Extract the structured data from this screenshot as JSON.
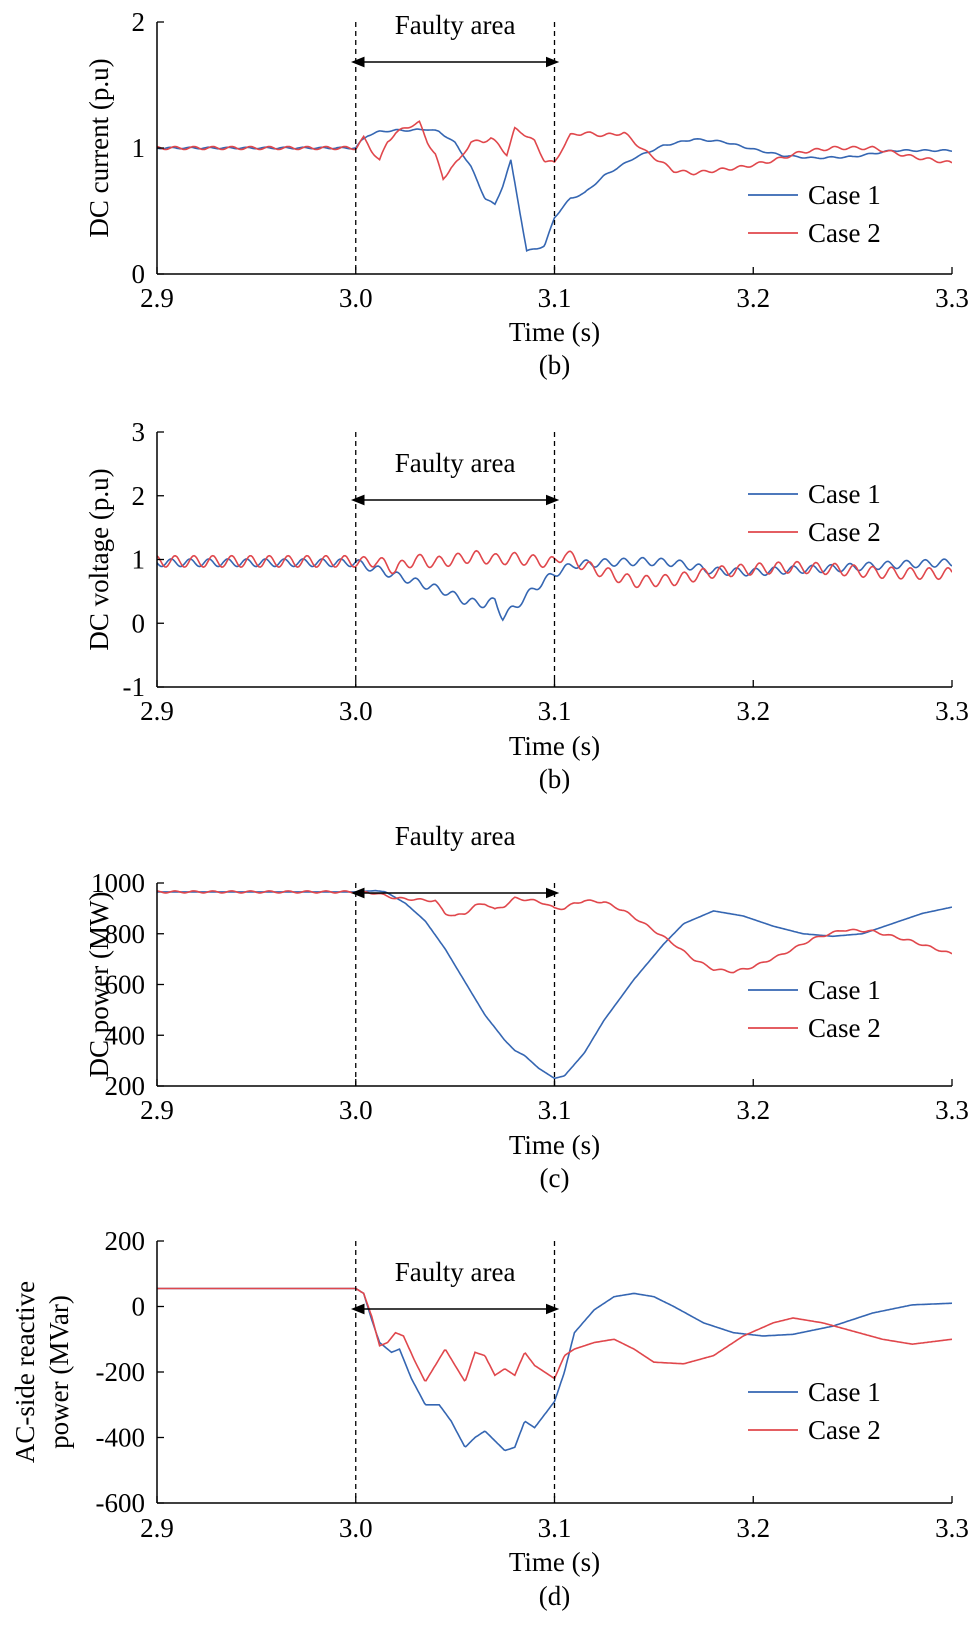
{
  "colors": {
    "case1": "#3566b2",
    "case2": "#e0474c",
    "axis": "#000000"
  },
  "chart_data": [
    {
      "type": "line",
      "xlabel": "Time (s)",
      "ylabel": "DC current (p.u)",
      "caption": "(b)",
      "xlim": [
        2.9,
        3.3
      ],
      "ylim": [
        0,
        2
      ],
      "xticks": [
        "2.9",
        "3.0",
        "3.1",
        "3.2",
        "3.3"
      ],
      "yticks": [
        "0",
        "1",
        "2"
      ],
      "annotation": {
        "text": "Faulty area",
        "from": 3.0,
        "to": 3.1
      },
      "series": [
        {
          "name": "Case 1",
          "noise": 0.006,
          "x": [
            2.9,
            3.0,
            3.003,
            3.006,
            3.012,
            3.02,
            3.028,
            3.035,
            3.042,
            3.05,
            3.058,
            3.065,
            3.07,
            3.074,
            3.078,
            3.082,
            3.086,
            3.09,
            3.095,
            3.1,
            3.108,
            3.115,
            3.125,
            3.14,
            3.155,
            3.17,
            3.185,
            3.2,
            3.215,
            3.23,
            3.25,
            3.27,
            3.29,
            3.3
          ],
          "y": [
            1.0,
            1.0,
            1.06,
            1.1,
            1.13,
            1.14,
            1.14,
            1.15,
            1.13,
            1.04,
            0.85,
            0.6,
            0.55,
            0.7,
            0.9,
            0.55,
            0.18,
            0.2,
            0.22,
            0.45,
            0.6,
            0.64,
            0.78,
            0.92,
            1.02,
            1.07,
            1.05,
            0.99,
            0.94,
            0.92,
            0.93,
            0.98,
            0.98,
            0.98
          ]
        },
        {
          "name": "Case 2",
          "noise": 0.012,
          "x": [
            2.9,
            3.0,
            3.004,
            3.008,
            3.012,
            3.016,
            3.02,
            3.024,
            3.028,
            3.032,
            3.036,
            3.04,
            3.044,
            3.048,
            3.052,
            3.058,
            3.064,
            3.068,
            3.072,
            3.076,
            3.08,
            3.084,
            3.09,
            3.095,
            3.1,
            3.104,
            3.108,
            3.115,
            3.125,
            3.135,
            3.145,
            3.16,
            3.17,
            3.18,
            3.195,
            3.21,
            3.225,
            3.24,
            3.26,
            3.28,
            3.3
          ],
          "y": [
            1.0,
            1.0,
            1.08,
            0.98,
            0.9,
            1.05,
            1.12,
            1.15,
            1.18,
            1.2,
            1.05,
            0.95,
            0.75,
            0.85,
            0.9,
            1.05,
            1.05,
            1.08,
            1.02,
            0.95,
            1.15,
            1.12,
            1.05,
            0.9,
            0.88,
            1.0,
            1.1,
            1.12,
            1.1,
            1.12,
            0.98,
            0.82,
            0.8,
            0.82,
            0.85,
            0.9,
            0.97,
            1.0,
            1.0,
            0.93,
            0.88
          ]
        }
      ]
    },
    {
      "type": "line",
      "xlabel": "Time (s)",
      "ylabel": "DC voltage (p.u)",
      "caption": "(b)",
      "xlim": [
        2.9,
        3.3
      ],
      "ylim": [
        -1,
        3
      ],
      "xticks": [
        "2.9",
        "3.0",
        "3.1",
        "3.2",
        "3.3"
      ],
      "yticks": [
        "-1",
        "0",
        "1",
        "2",
        "3"
      ],
      "annotation": {
        "text": "Faulty area",
        "from": 3.0,
        "to": 3.1
      },
      "series": [
        {
          "name": "Case 1",
          "noise": 0.06,
          "x": [
            2.9,
            3.0,
            3.005,
            3.015,
            3.03,
            3.045,
            3.055,
            3.065,
            3.07,
            3.074,
            3.08,
            3.09,
            3.1,
            3.11,
            3.125,
            3.145,
            3.16,
            3.18,
            3.2,
            3.22,
            3.24,
            3.26,
            3.28,
            3.3
          ],
          "y": [
            0.95,
            0.95,
            0.9,
            0.8,
            0.65,
            0.5,
            0.35,
            0.3,
            0.35,
            0.1,
            0.25,
            0.55,
            0.78,
            0.92,
            0.95,
            0.97,
            0.95,
            0.82,
            0.8,
            0.84,
            0.86,
            0.9,
            0.93,
            0.95
          ]
        },
        {
          "name": "Case 2",
          "noise": 0.09,
          "x": [
            2.9,
            3.0,
            3.003,
            3.01,
            3.02,
            3.03,
            3.04,
            3.05,
            3.06,
            3.07,
            3.08,
            3.09,
            3.1,
            3.105,
            3.115,
            3.13,
            3.14,
            3.16,
            3.18,
            3.2,
            3.22,
            3.24,
            3.26,
            3.28,
            3.3
          ],
          "y": [
            0.97,
            0.97,
            0.95,
            0.98,
            0.85,
            1.0,
            0.95,
            1.0,
            1.05,
            1.0,
            1.02,
            0.98,
            0.95,
            1.1,
            0.9,
            0.75,
            0.65,
            0.68,
            0.8,
            0.85,
            0.88,
            0.85,
            0.8,
            0.78,
            0.78
          ]
        }
      ]
    },
    {
      "type": "line",
      "xlabel": "Time (s)",
      "ylabel": "DC power (MW)",
      "caption": "(c)",
      "xlim": [
        2.9,
        3.3
      ],
      "ylim": [
        200,
        1000
      ],
      "xticks": [
        "2.9",
        "3.0",
        "3.1",
        "3.2",
        "3.3"
      ],
      "yticks": [
        "200",
        "400",
        "600",
        "800",
        "1000"
      ],
      "annotation": {
        "text": "Faulty area",
        "from": 3.0,
        "to": 3.1
      },
      "series": [
        {
          "name": "Case 1",
          "noise": 0,
          "x": [
            2.9,
            3.0,
            3.01,
            3.015,
            3.025,
            3.035,
            3.045,
            3.055,
            3.065,
            3.075,
            3.08,
            3.085,
            3.092,
            3.1,
            3.105,
            3.115,
            3.125,
            3.14,
            3.155,
            3.165,
            3.18,
            3.195,
            3.21,
            3.225,
            3.24,
            3.255,
            3.27,
            3.285,
            3.3
          ],
          "y": [
            965,
            965,
            970,
            965,
            920,
            850,
            740,
            610,
            480,
            380,
            340,
            320,
            270,
            230,
            240,
            330,
            460,
            620,
            760,
            840,
            890,
            870,
            830,
            800,
            790,
            800,
            840,
            880,
            905
          ]
        },
        {
          "name": "Case 2",
          "noise": 4,
          "x": [
            2.9,
            3.0,
            3.01,
            3.02,
            3.03,
            3.04,
            3.045,
            3.05,
            3.055,
            3.06,
            3.065,
            3.07,
            3.075,
            3.08,
            3.085,
            3.09,
            3.095,
            3.1,
            3.105,
            3.11,
            3.115,
            3.125,
            3.135,
            3.145,
            3.16,
            3.17,
            3.18,
            3.19,
            3.2,
            3.215,
            3.23,
            3.245,
            3.26,
            3.28,
            3.3
          ],
          "y": [
            965,
            965,
            960,
            940,
            935,
            930,
            880,
            870,
            880,
            910,
            920,
            895,
            910,
            940,
            935,
            930,
            920,
            900,
            900,
            920,
            930,
            925,
            890,
            840,
            760,
            700,
            660,
            650,
            670,
            720,
            780,
            815,
            810,
            770,
            720
          ]
        }
      ]
    },
    {
      "type": "line",
      "xlabel": "Time (s)",
      "ylabel": "AC-side reactive power (MVar)",
      "ylabel_lines": [
        "AC-side reactive",
        "power (MVar)"
      ],
      "caption": "(d)",
      "xlim": [
        2.9,
        3.3
      ],
      "ylim": [
        -600,
        200
      ],
      "xticks": [
        "2.9",
        "3.0",
        "3.1",
        "3.2",
        "3.3"
      ],
      "yticks": [
        "-600",
        "-400",
        "-200",
        "0",
        "200"
      ],
      "annotation": {
        "text": "Faulty area",
        "from": 3.0,
        "to": 3.1
      },
      "series": [
        {
          "name": "Case 1",
          "noise": 0,
          "x": [
            2.9,
            3.0,
            3.004,
            3.008,
            3.012,
            3.018,
            3.022,
            3.028,
            3.035,
            3.042,
            3.048,
            3.055,
            3.06,
            3.065,
            3.07,
            3.075,
            3.08,
            3.085,
            3.09,
            3.095,
            3.1,
            3.105,
            3.11,
            3.12,
            3.13,
            3.14,
            3.15,
            3.16,
            3.175,
            3.19,
            3.205,
            3.22,
            3.24,
            3.26,
            3.28,
            3.3
          ],
          "y": [
            55,
            55,
            40,
            -40,
            -110,
            -140,
            -130,
            -220,
            -300,
            -300,
            -350,
            -430,
            -400,
            -380,
            -410,
            -440,
            -430,
            -350,
            -370,
            -330,
            -290,
            -200,
            -80,
            -10,
            30,
            40,
            30,
            0,
            -50,
            -80,
            -90,
            -85,
            -60,
            -20,
            5,
            10
          ]
        },
        {
          "name": "Case 2",
          "noise": 0,
          "x": [
            2.9,
            3.0,
            3.004,
            3.008,
            3.012,
            3.016,
            3.02,
            3.024,
            3.03,
            3.035,
            3.04,
            3.045,
            3.05,
            3.055,
            3.06,
            3.065,
            3.07,
            3.075,
            3.08,
            3.085,
            3.09,
            3.095,
            3.1,
            3.105,
            3.11,
            3.12,
            3.13,
            3.14,
            3.15,
            3.165,
            3.18,
            3.195,
            3.21,
            3.22,
            3.235,
            3.25,
            3.265,
            3.28,
            3.3
          ],
          "y": [
            55,
            55,
            40,
            -30,
            -120,
            -110,
            -80,
            -90,
            -170,
            -230,
            -180,
            -130,
            -180,
            -230,
            -140,
            -150,
            -210,
            -190,
            -210,
            -140,
            -180,
            -200,
            -220,
            -150,
            -130,
            -110,
            -100,
            -130,
            -170,
            -175,
            -150,
            -90,
            -50,
            -35,
            -50,
            -75,
            -100,
            -115,
            -100
          ]
        }
      ]
    }
  ]
}
